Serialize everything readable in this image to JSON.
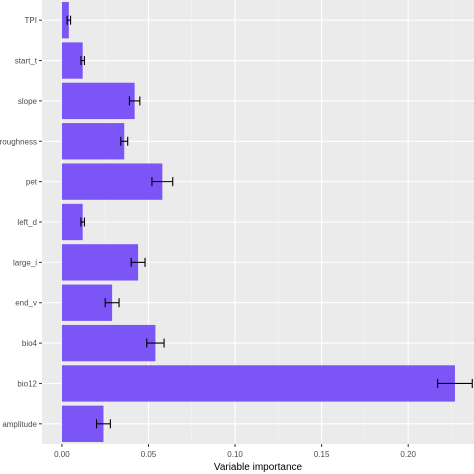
{
  "chart_data": {
    "type": "bar",
    "orientation": "horizontal",
    "title": "",
    "xlabel": "Variable importance",
    "ylabel": "",
    "categories": [
      "TPI",
      "start_t",
      "slope",
      "roughness",
      "pet",
      "left_d",
      "large_i",
      "end_v",
      "bio4",
      "bio12",
      "amplitude"
    ],
    "values": [
      0.004,
      0.012,
      0.042,
      0.036,
      0.058,
      0.012,
      0.044,
      0.029,
      0.054,
      0.227,
      0.024
    ],
    "errors": [
      0.001,
      0.001,
      0.003,
      0.002,
      0.006,
      0.001,
      0.004,
      0.004,
      0.005,
      0.01,
      0.004
    ],
    "x_ticks": [
      "0.00",
      "0.05",
      "0.10",
      "0.15",
      "0.20"
    ],
    "x_tick_values": [
      0.0,
      0.05,
      0.1,
      0.15,
      0.2
    ],
    "xlim": [
      -0.0115,
      0.238
    ],
    "grid": true,
    "legend": "none",
    "colors": {
      "bar": "#7b55f5",
      "panel": "#ebebeb",
      "grid_major": "#ffffff",
      "grid_minor": "#f4f4f4",
      "error_bar": "#000000",
      "text": "#4d4d4d"
    }
  }
}
